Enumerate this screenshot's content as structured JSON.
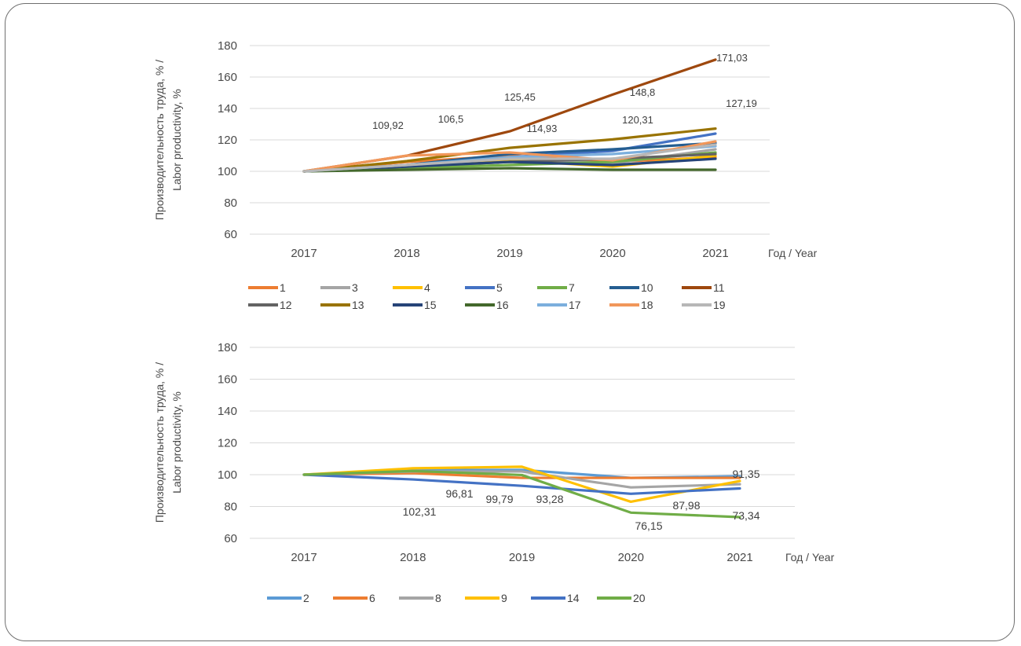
{
  "chart_data": [
    {
      "type": "line",
      "ylabel": [
        "Производительность труда, % /",
        "Labor productivity, %"
      ],
      "xlabel": "Год / Year",
      "x": [
        "2017",
        "2018",
        "2019",
        "2020",
        "2021"
      ],
      "yticks": [
        "60",
        "80",
        "100",
        "120",
        "140",
        "160",
        "180"
      ],
      "ylim": [
        60,
        180
      ],
      "grid": true,
      "legend_position": "bottom",
      "series": [
        {
          "name": "1",
          "color": "#ed7d31",
          "values": [
            100,
            106,
            110,
            106,
            109
          ]
        },
        {
          "name": "3",
          "color": "#a5a5a5",
          "values": [
            100,
            104,
            108,
            105,
            114
          ]
        },
        {
          "name": "4",
          "color": "#ffc000",
          "values": [
            100,
            103,
            107,
            103,
            110
          ]
        },
        {
          "name": "5",
          "color": "#4472c4",
          "values": [
            100,
            103,
            109,
            113,
            124
          ]
        },
        {
          "name": "7",
          "color": "#70ad47",
          "values": [
            100,
            102,
            104,
            106,
            112
          ]
        },
        {
          "name": "10",
          "color": "#255e91",
          "values": [
            100,
            104,
            111,
            114,
            118
          ]
        },
        {
          "name": "11",
          "color": "#9e480e",
          "values": [
            100,
            109.92,
            125.45,
            148.8,
            171.03
          ]
        },
        {
          "name": "12",
          "color": "#636363",
          "values": [
            100,
            103,
            106,
            108,
            111
          ]
        },
        {
          "name": "13",
          "color": "#997300",
          "values": [
            100,
            106.5,
            114.93,
            120.31,
            127.19
          ]
        },
        {
          "name": "15",
          "color": "#264478",
          "values": [
            100,
            103,
            106,
            104,
            108
          ]
        },
        {
          "name": "16",
          "color": "#43682b",
          "values": [
            100,
            101,
            102,
            101,
            101
          ]
        },
        {
          "name": "17",
          "color": "#7cafdd",
          "values": [
            100,
            104,
            109,
            111,
            116
          ]
        },
        {
          "name": "18",
          "color": "#f1975a",
          "values": [
            100,
            110,
            112,
            107,
            119
          ]
        },
        {
          "name": "19",
          "color": "#b7b7b7",
          "values": [
            100,
            104,
            108,
            108,
            117
          ]
        }
      ],
      "annotations": [
        "109,92",
        "106,5",
        "125,45",
        "114,93",
        "148,8",
        "120,31",
        "171,03",
        "127,19"
      ]
    },
    {
      "type": "line",
      "ylabel": [
        "Производительность труда, % /",
        "Labor productivity, %"
      ],
      "xlabel": "Год / Year",
      "x": [
        "2017",
        "2018",
        "2019",
        "2020",
        "2021"
      ],
      "yticks": [
        "60",
        "80",
        "100",
        "120",
        "140",
        "160",
        "180"
      ],
      "ylim": [
        60,
        180
      ],
      "grid": true,
      "legend_position": "bottom",
      "series": [
        {
          "name": "2",
          "color": "#5b9bd5",
          "values": [
            100,
            103,
            103,
            98,
            99
          ]
        },
        {
          "name": "6",
          "color": "#ed7d31",
          "values": [
            100,
            101,
            98,
            98,
            98
          ]
        },
        {
          "name": "8",
          "color": "#a5a5a5",
          "values": [
            100,
            102,
            102,
            92,
            94
          ]
        },
        {
          "name": "9",
          "color": "#ffc000",
          "values": [
            100,
            104,
            105,
            83,
            96
          ]
        },
        {
          "name": "14",
          "color": "#4472c4",
          "values": [
            100,
            97,
            93,
            88,
            91.35
          ]
        },
        {
          "name": "20",
          "color": "#70ad47",
          "values": [
            100,
            102.31,
            99.79,
            76.15,
            73.34
          ]
        }
      ],
      "annotations": [
        "96,81",
        "102,31",
        "99,79",
        "93,28",
        "87,98",
        "76,15",
        "91,35",
        "73,34"
      ]
    }
  ]
}
